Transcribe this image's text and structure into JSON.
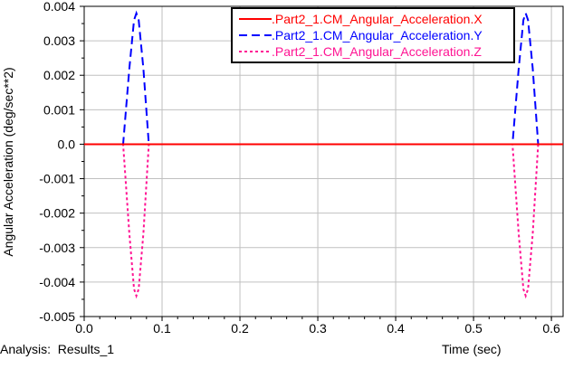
{
  "footer": {
    "analysis_label": "Analysis:  Results_1"
  },
  "chart_data": {
    "type": "line",
    "title": "",
    "xlabel": "Time (sec)",
    "ylabel": "Angular Acceleration (deg/sec**2)",
    "xlim": [
      0.0,
      0.615
    ],
    "ylim": [
      -0.005,
      0.004
    ],
    "x_ticks": [
      0.0,
      0.1,
      0.2,
      0.3,
      0.4,
      0.5,
      0.6
    ],
    "x_tick_labels": [
      "0.0",
      "0.1",
      "0.2",
      "0.3",
      "0.4",
      "0.5",
      "0.6"
    ],
    "y_ticks": [
      0.004,
      0.003,
      0.002,
      0.001,
      0.0,
      -0.001,
      -0.002,
      -0.003,
      -0.004,
      -0.005
    ],
    "y_tick_labels": [
      "0.004",
      "0.003",
      "0.002",
      "0.001",
      "0.0",
      "-0.001",
      "-0.002",
      "-0.003",
      "-0.004",
      "-0.005"
    ],
    "grid": true,
    "legend_position": "top-right",
    "series": [
      {
        "name": ".Part2_1.CM_Angular_Acceleration.X",
        "color": "#ff0000",
        "style": "solid",
        "x": [
          0.0,
          0.615
        ],
        "y": [
          0.0,
          0.0
        ]
      },
      {
        "name": ".Part2_1.CM_Angular_Acceleration.Y",
        "color": "#0000ff",
        "style": "dashed",
        "x": [
          0.0,
          0.05,
          0.058,
          0.064,
          0.067,
          0.07,
          0.076,
          0.083,
          0.55,
          0.558,
          0.564,
          0.567,
          0.57,
          0.576,
          0.583,
          0.615
        ],
        "y": [
          0.0,
          0.0,
          0.0022,
          0.0036,
          0.0038,
          0.0036,
          0.0022,
          0.0,
          0.0,
          0.0022,
          0.0036,
          0.0038,
          0.0036,
          0.0022,
          0.0,
          0.0
        ]
      },
      {
        "name": ".Part2_1.CM_Angular_Acceleration.Z",
        "color": "#ff1493",
        "style": "dotted",
        "x": [
          0.0,
          0.05,
          0.058,
          0.064,
          0.067,
          0.07,
          0.076,
          0.083,
          0.55,
          0.558,
          0.564,
          0.567,
          0.57,
          0.576,
          0.583,
          0.615
        ],
        "y": [
          0.0,
          0.0,
          -0.0026,
          -0.0042,
          -0.0044,
          -0.0042,
          -0.0026,
          0.0,
          0.0,
          -0.0026,
          -0.0042,
          -0.0044,
          -0.0042,
          -0.0026,
          0.0,
          0.0
        ]
      }
    ]
  }
}
